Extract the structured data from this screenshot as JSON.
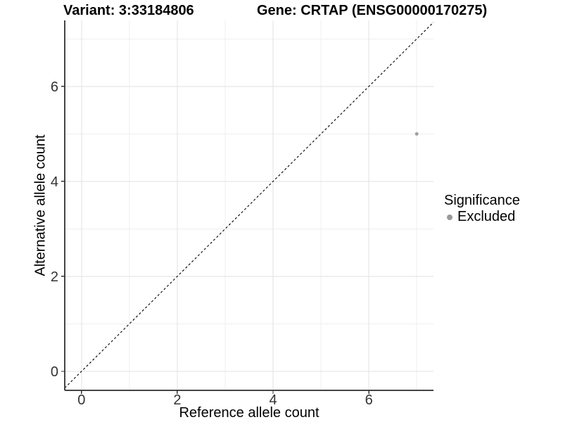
{
  "header": {
    "variant_title": "Variant: 3:33184806",
    "gene_title": "Gene: CRTAP (ENSG00000170275)"
  },
  "chart_data": {
    "type": "scatter",
    "xlabel": "Reference allele count",
    "ylabel": "Alternative allele count",
    "xlim": [
      -0.35,
      7.35
    ],
    "ylim": [
      -0.4,
      7.39
    ],
    "x_major_ticks": [
      0,
      2,
      4,
      6
    ],
    "x_minor_ticks": [
      1,
      3,
      5,
      7
    ],
    "y_major_ticks": [
      0,
      2,
      4,
      6
    ],
    "y_minor_ticks": [
      1,
      3,
      5,
      7
    ],
    "series": [
      {
        "name": "Excluded",
        "color": "#a0a0a0",
        "points": [
          {
            "x": 7,
            "y": 5
          }
        ]
      }
    ],
    "reference_line": {
      "type": "identity",
      "slope": 1,
      "intercept": 0,
      "style": "dashed",
      "color": "#000000"
    },
    "grid": true,
    "legend_position": "right"
  },
  "legend": {
    "title": "Significance",
    "items": [
      {
        "label": "Excluded",
        "color": "#9a9a9a"
      }
    ]
  },
  "styles": {
    "grid_major_color": "#e2e2e2",
    "grid_minor_color": "#efefef",
    "axis_line_color": "#454545",
    "tick_color": "#333333",
    "tick_label_color": "#333333",
    "point_color": "#a0a0a0"
  }
}
